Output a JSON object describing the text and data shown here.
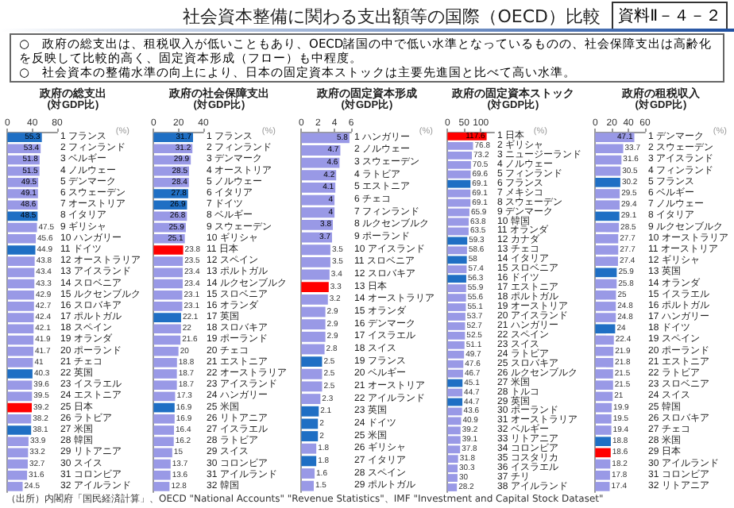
{
  "chart_data": [
    {
      "type": "other",
      "title": "社会資本整備に関わる支出額等の国際（OECD）比較",
      "subtitle": "資料Ⅱ－４－２",
      "annotations": [
        "○　政府の総支出は、租税収入が低いこともあり、OECD諸国の中で低い水準となっているものの、社会保障支出は高齢化を反映して比較的高く、固定資本形成（フロー）も中程度。",
        "○　社会資本の整備水準の向上により、日本の固定資本ストックは主要先進国と比べて高い水準。",
        "（出所）内閣府「国民経済計算」、OECD \"National Accounts\" \"Revenue Statistics\"、IMF \"Investment and Capital Stock Dataset\""
      ]
    },
    {
      "type": "bar",
      "orientation": "horizontal",
      "title": "政府の総支出",
      "subtitle": "(対GDP比)",
      "xlabel": "(%)",
      "xlim": [
        0,
        80
      ],
      "xticks": [
        0,
        40,
        80
      ],
      "data_labels": true,
      "categories": [
        "1 フランス",
        "2 フィンランド",
        "3 ベルギー",
        "4 ノルウェー",
        "5 デンマーク",
        "6 スウェーデン",
        "7 オーストリア",
        "8 イタリア",
        "9 ギリシャ",
        "10 ハンガリー",
        "11 ドイツ",
        "12 オーストラリア",
        "13 アイスランド",
        "14 スロベニア",
        "15 ルクセンブルク",
        "16 スロバキア",
        "17 ポルトガル",
        "18 スペイン",
        "19 オランダ",
        "20 ポーランド",
        "21 チェコ",
        "22 英国",
        "23 イスラエル",
        "24 エストニア",
        "25 日本",
        "26 ラトビア",
        "27 米国",
        "28 韓国",
        "29 リトアニア",
        "30 スイス",
        "31 コロンビア",
        "32 アイルランド"
      ],
      "values": [
        55.3,
        53.4,
        51.8,
        51.5,
        49.5,
        49.1,
        48.6,
        48.5,
        47.5,
        45.6,
        44.9,
        43.8,
        43.4,
        43.3,
        42.9,
        42.7,
        42.4,
        42.1,
        41.9,
        41.7,
        41.0,
        40.3,
        39.6,
        39.5,
        39.2,
        38.2,
        38.1,
        33.9,
        33.2,
        32.7,
        31.6,
        24.5
      ],
      "colors": [
        "#1f6fc4",
        "#9999e6",
        "#9999e6",
        "#9999e6",
        "#9999e6",
        "#9999e6",
        "#9999e6",
        "#1f6fc4",
        "#9999e6",
        "#9999e6",
        "#1f6fc4",
        "#9999e6",
        "#9999e6",
        "#9999e6",
        "#9999e6",
        "#9999e6",
        "#9999e6",
        "#9999e6",
        "#9999e6",
        "#9999e6",
        "#9999e6",
        "#1f6fc4",
        "#9999e6",
        "#9999e6",
        "#ff0000",
        "#9999e6",
        "#1f6fc4",
        "#9999e6",
        "#9999e6",
        "#9999e6",
        "#9999e6",
        "#9999e6"
      ]
    },
    {
      "type": "bar",
      "orientation": "horizontal",
      "title": "政府の社会保障支出",
      "subtitle": "(対GDP比)",
      "xlabel": "(%)",
      "xlim": [
        0,
        40
      ],
      "xticks": [
        0,
        20,
        40
      ],
      "data_labels": true,
      "categories": [
        "1 フランス",
        "2 フィンランド",
        "3 デンマーク",
        "4 オーストリア",
        "5 ノルウェー",
        "6 イタリア",
        "7 ドイツ",
        "8 ベルギー",
        "9 スウェーデン",
        "10 ギリシャ",
        "11 日本",
        "12 スペイン",
        "13 ポルトガル",
        "14 ルクセンブルク",
        "15 スロベニア",
        "16 オランダ",
        "17 英国",
        "18 スロバキア",
        "19 ポーランド",
        "20 チェコ",
        "21 エストニア",
        "22 オーストラリア",
        "23 アイスランド",
        "24 ハンガリー",
        "25 米国",
        "26 リトアニア",
        "27 イスラエル",
        "28 ラトビア",
        "29 スイス",
        "30 コロンビア",
        "31 アイルランド",
        "32 韓国"
      ],
      "values": [
        31.7,
        31.2,
        29.9,
        28.5,
        28.4,
        27.8,
        26.9,
        26.8,
        25.9,
        25.1,
        23.8,
        23.5,
        23.4,
        23.4,
        23.1,
        23.1,
        22.1,
        22.0,
        21.6,
        20.0,
        18.8,
        18.7,
        18.7,
        17.3,
        16.9,
        16.9,
        16.4,
        16.2,
        15.0,
        13.7,
        13.6,
        12.8
      ],
      "colors": [
        "#1f6fc4",
        "#9999e6",
        "#9999e6",
        "#9999e6",
        "#9999e6",
        "#1f6fc4",
        "#1f6fc4",
        "#9999e6",
        "#9999e6",
        "#9999e6",
        "#ff0000",
        "#9999e6",
        "#9999e6",
        "#9999e6",
        "#9999e6",
        "#9999e6",
        "#1f6fc4",
        "#9999e6",
        "#9999e6",
        "#9999e6",
        "#9999e6",
        "#9999e6",
        "#9999e6",
        "#9999e6",
        "#1f6fc4",
        "#9999e6",
        "#9999e6",
        "#9999e6",
        "#9999e6",
        "#9999e6",
        "#9999e6",
        "#9999e6"
      ]
    },
    {
      "type": "bar",
      "orientation": "horizontal",
      "title": "政府の固定資本形成",
      "subtitle": "(対GDP比)",
      "xlabel": "(%)",
      "xlim": [
        0,
        6
      ],
      "xticks": [
        0,
        2,
        4,
        6
      ],
      "data_labels": true,
      "categories": [
        "1 ハンガリー",
        "2 ノルウェー",
        "3 スウェーデン",
        "4 ラトビア",
        "5 エストニア",
        "6 チェコ",
        "7 フィンランド",
        "8 ルクセンブルク",
        "9 ポーランド",
        "10 アイスランド",
        "11 スロベニア",
        "12 スロバキア",
        "13 日本",
        "14 オーストラリア",
        "15 オランダ",
        "16 デンマーク",
        "17 イスラエル",
        "18 スイス",
        "19 フランス",
        "20 ベルギー",
        "21 オーストリア",
        "22 アイルランド",
        "23 英国",
        "24 ドイツ",
        "25 米国",
        "26 ギリシャ",
        "27 イタリア",
        "28 スペイン",
        "29 ポルトガル"
      ],
      "values": [
        5.8,
        4.7,
        4.6,
        4.2,
        4.1,
        4.0,
        4.0,
        3.8,
        3.7,
        3.5,
        3.5,
        3.4,
        3.3,
        3.2,
        2.9,
        2.9,
        2.9,
        2.8,
        2.5,
        2.5,
        2.5,
        2.3,
        2.1,
        2.0,
        2.0,
        1.8,
        1.8,
        1.6,
        1.5
      ],
      "colors": [
        "#9999e6",
        "#9999e6",
        "#9999e6",
        "#9999e6",
        "#9999e6",
        "#9999e6",
        "#9999e6",
        "#9999e6",
        "#9999e6",
        "#9999e6",
        "#9999e6",
        "#9999e6",
        "#ff0000",
        "#9999e6",
        "#9999e6",
        "#9999e6",
        "#9999e6",
        "#9999e6",
        "#1f6fc4",
        "#9999e6",
        "#9999e6",
        "#9999e6",
        "#1f6fc4",
        "#1f6fc4",
        "#1f6fc4",
        "#9999e6",
        "#1f6fc4",
        "#9999e6",
        "#9999e6"
      ]
    },
    {
      "type": "bar",
      "orientation": "horizontal",
      "title": "政府の固定資本ストック",
      "subtitle": "(対GDP比)",
      "xlabel": "(%)",
      "xlim": [
        0,
        140
      ],
      "xticks": [
        0,
        50,
        100
      ],
      "data_labels": true,
      "categories": [
        "1 日本",
        "2 ギリシャ",
        "3 ニュージーランド",
        "4 ノルウェー",
        "5 フィンランド",
        "6 フランス",
        "7 メキシコ",
        "8 スウェーデン",
        "9 デンマーク",
        "10 韓国",
        "11 オランダ",
        "12 カナダ",
        "13 チェコ",
        "14 イタリア",
        "15 スロベニア",
        "16 ドイツ",
        "17 エストニア",
        "18 ポルトガル",
        "19 オーストリア",
        "20 アイスランド",
        "21 ハンガリー",
        "22 スペイン",
        "23 スイス",
        "24 ラトビア",
        "25 スロバキア",
        "26 ルクセンブルク",
        "27 米国",
        "28 トルコ",
        "29 英国",
        "30 ポーランド",
        "31 オーストラリア",
        "32 ベルギー",
        "33 リトアニア",
        "34 コロンビア",
        "35 コスタリカ",
        "36 イスラエル",
        "37 チリ",
        "38 アイルランド"
      ],
      "values": [
        117.6,
        76.8,
        73.2,
        70.5,
        69.6,
        69.1,
        69.1,
        69.1,
        65.9,
        63.8,
        63.5,
        59.3,
        58.6,
        58.0,
        57.4,
        56.3,
        55.9,
        55.6,
        55.1,
        53.7,
        52.7,
        52.5,
        51.1,
        49.7,
        47.6,
        46.7,
        45.1,
        44.7,
        44.7,
        43.6,
        40.9,
        39.2,
        39.1,
        37.8,
        31.8,
        30.3,
        30.0,
        28.2
      ],
      "colors": [
        "#ff0000",
        "#9999e6",
        "#9999e6",
        "#9999e6",
        "#9999e6",
        "#1f6fc4",
        "#9999e6",
        "#9999e6",
        "#9999e6",
        "#9999e6",
        "#9999e6",
        "#1f6fc4",
        "#9999e6",
        "#1f6fc4",
        "#9999e6",
        "#1f6fc4",
        "#9999e6",
        "#9999e6",
        "#9999e6",
        "#9999e6",
        "#9999e6",
        "#9999e6",
        "#9999e6",
        "#9999e6",
        "#9999e6",
        "#9999e6",
        "#1f6fc4",
        "#9999e6",
        "#1f6fc4",
        "#9999e6",
        "#9999e6",
        "#9999e6",
        "#9999e6",
        "#9999e6",
        "#9999e6",
        "#9999e6",
        "#9999e6",
        "#9999e6"
      ]
    },
    {
      "type": "bar",
      "orientation": "horizontal",
      "title": "政府の租税収入",
      "subtitle": "(対GDP比)",
      "xlabel": "(%)",
      "xlim": [
        0,
        60
      ],
      "xticks": [
        0,
        20,
        40,
        60
      ],
      "data_labels": true,
      "categories": [
        "1 デンマーク",
        "2 スウェーデン",
        "3 アイスランド",
        "4 フィンランド",
        "5 フランス",
        "6 ベルギー",
        "7 ノルウェー",
        "8 イタリア",
        "9 ルクセンブルク",
        "10 オーストラリア",
        "11 オーストリア",
        "12 ギリシャ",
        "13 英国",
        "14 オランダ",
        "15 イスラエル",
        "16 ポルトガル",
        "17 ハンガリー",
        "18 ドイツ",
        "19 スペイン",
        "20 ポーランド",
        "21 エストニア",
        "22 ラトビア",
        "23 スロベニア",
        "24 スイス",
        "25 韓国",
        "26 スロバキア",
        "27 チェコ",
        "28 米国",
        "29 日本",
        "30 アイルランド",
        "31 コロンビア",
        "32 リトアニア"
      ],
      "values": [
        47.1,
        33.7,
        31.6,
        30.5,
        30.2,
        29.5,
        29.4,
        29.1,
        28.5,
        27.7,
        27.7,
        27.4,
        25.9,
        25.8,
        25.0,
        24.8,
        24.8,
        24.0,
        22.4,
        21.9,
        21.8,
        21.5,
        21.5,
        21.0,
        19.9,
        19.5,
        19.4,
        18.8,
        18.6,
        18.2,
        17.8,
        17.4
      ],
      "colors": [
        "#9999e6",
        "#9999e6",
        "#9999e6",
        "#9999e6",
        "#1f6fc4",
        "#9999e6",
        "#9999e6",
        "#1f6fc4",
        "#9999e6",
        "#9999e6",
        "#9999e6",
        "#9999e6",
        "#1f6fc4",
        "#9999e6",
        "#9999e6",
        "#9999e6",
        "#9999e6",
        "#1f6fc4",
        "#9999e6",
        "#9999e6",
        "#9999e6",
        "#9999e6",
        "#9999e6",
        "#9999e6",
        "#9999e6",
        "#9999e6",
        "#9999e6",
        "#1f6fc4",
        "#ff0000",
        "#9999e6",
        "#9999e6",
        "#9999e6"
      ]
    }
  ]
}
